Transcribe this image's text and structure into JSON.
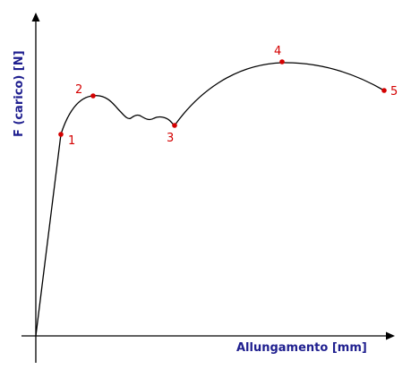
{
  "diagram": {
    "x_axis_label": "Allungamento [mm]",
    "y_axis_label": "F (carico) [N]",
    "curve_color": "#000000",
    "axis_color": "#000000",
    "axis_label_color": "#1f1f8f",
    "point_color": "#d40000",
    "points": [
      {
        "id": "1",
        "label": "1"
      },
      {
        "id": "2",
        "label": "2"
      },
      {
        "id": "3",
        "label": "3"
      },
      {
        "id": "4",
        "label": "4"
      },
      {
        "id": "5",
        "label": "5"
      }
    ]
  }
}
